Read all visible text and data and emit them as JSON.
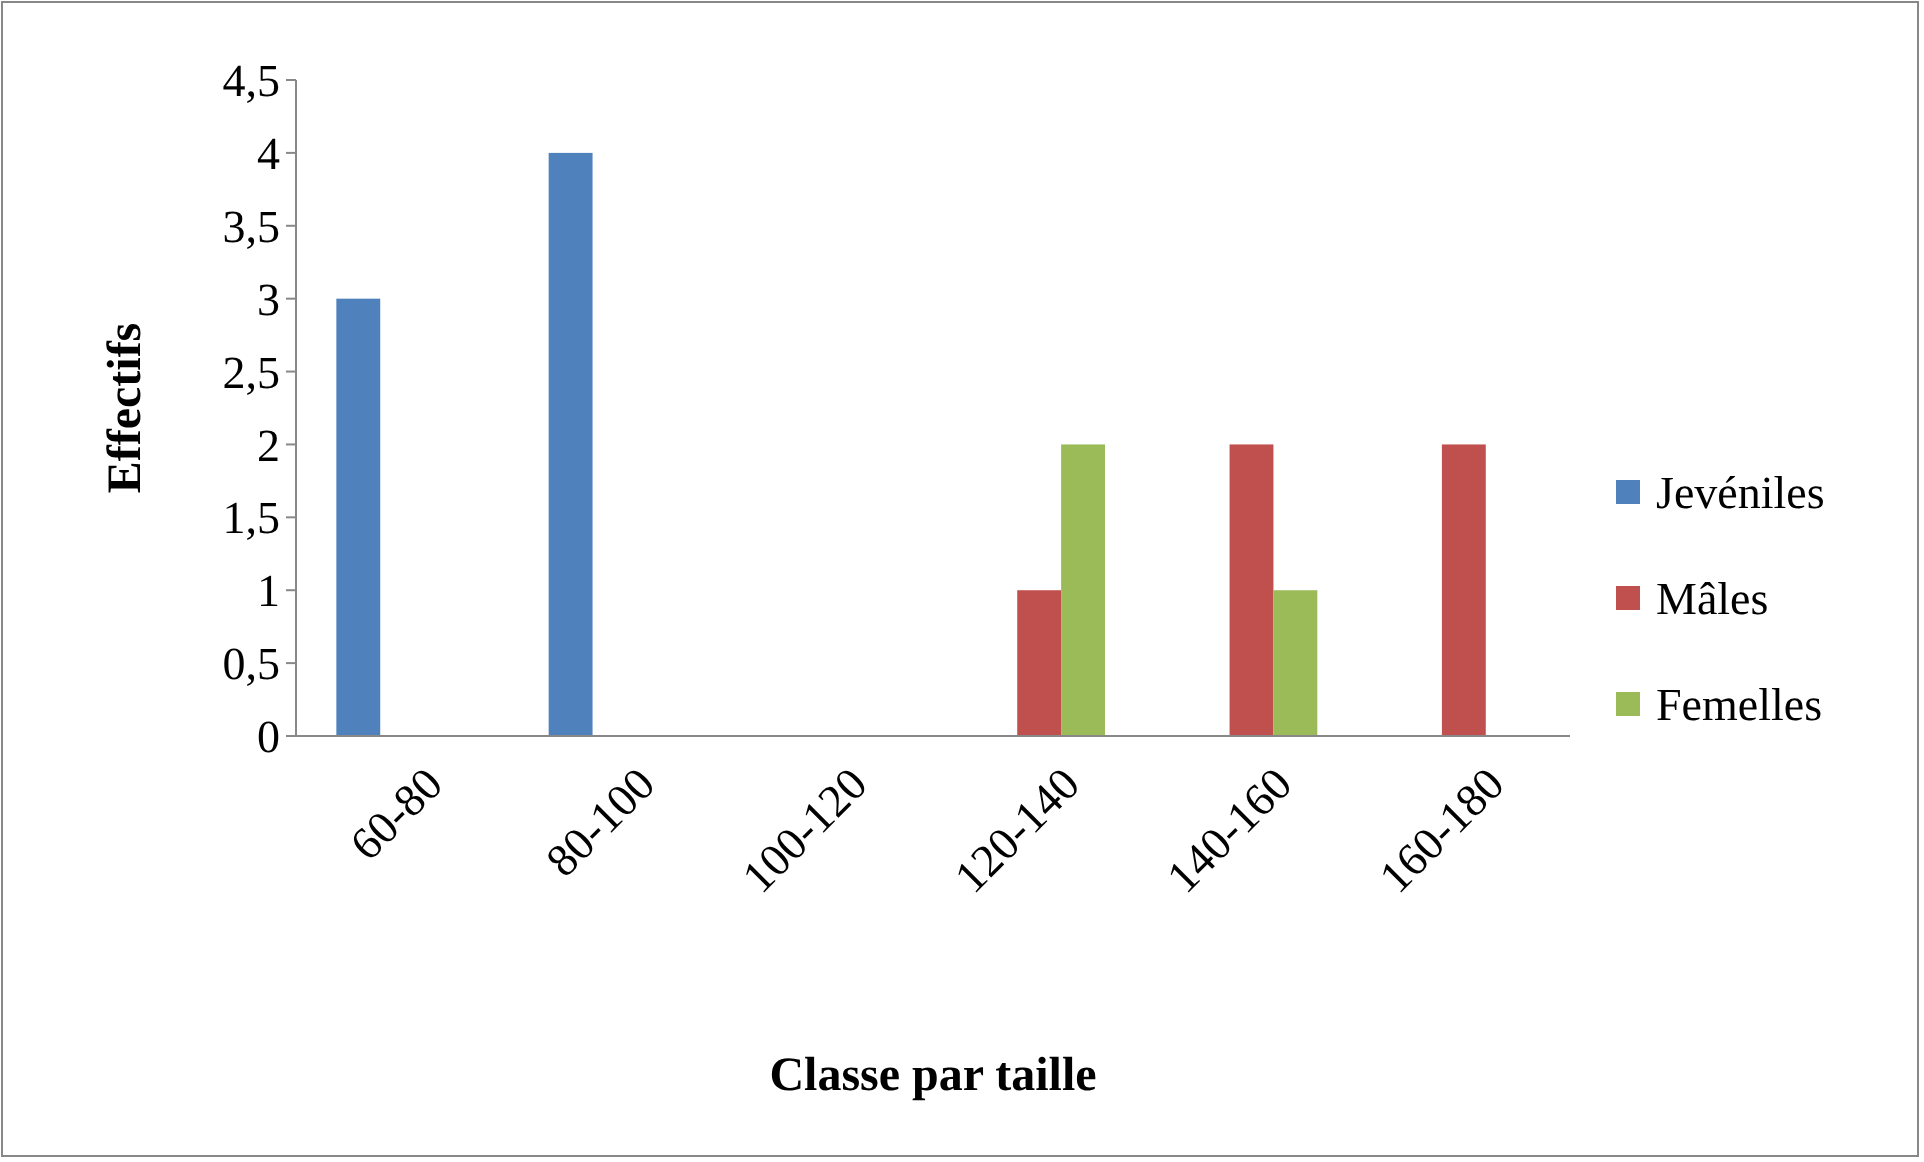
{
  "chart_data": {
    "type": "bar",
    "xlabel": "Classe par taille",
    "ylabel": "Effectifs",
    "categories": [
      "60-80",
      "80-100",
      "100-120",
      "120-140",
      "140-160",
      "160-180"
    ],
    "series": [
      {
        "name": "Jevéniles",
        "color": "#4f81bd",
        "values": [
          3,
          4,
          0,
          0,
          0,
          0
        ]
      },
      {
        "name": "Mâles",
        "color": "#c0504d",
        "values": [
          0,
          0,
          0,
          1,
          2,
          2
        ]
      },
      {
        "name": "Femelles",
        "color": "#9bbb59",
        "values": [
          0,
          0,
          0,
          2,
          1,
          0
        ]
      }
    ],
    "ylim": [
      0,
      4.5
    ],
    "yticks": [
      {
        "value": 0,
        "label": "0"
      },
      {
        "value": 0.5,
        "label": "0,5"
      },
      {
        "value": 1,
        "label": "1"
      },
      {
        "value": 1.5,
        "label": "1,5"
      },
      {
        "value": 2,
        "label": "2"
      },
      {
        "value": 2.5,
        "label": "2,5"
      },
      {
        "value": 3,
        "label": "3"
      },
      {
        "value": 3.5,
        "label": "3,5"
      },
      {
        "value": 4,
        "label": "4"
      },
      {
        "value": 4.5,
        "label": "4,5"
      }
    ],
    "grid": false,
    "legend": "right"
  }
}
